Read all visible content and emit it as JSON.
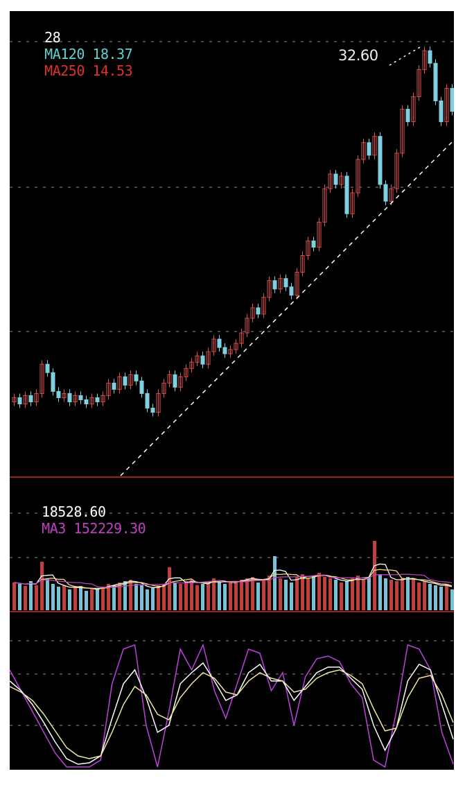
{
  "chart_data": [
    {
      "type": "candlestick",
      "legend": [
        {
          "text": "28",
          "color": "#ffffff"
        },
        {
          "text": "MA120 18.37",
          "color": "#5fd3d3"
        },
        {
          "text": "MA250 14.53",
          "color": "#e03030"
        }
      ],
      "annotation": "32.60",
      "grid": true,
      "ylim": [
        12,
        33.3
      ],
      "close": [
        15.8,
        15.5,
        15.9,
        15.6,
        16.0,
        17.4,
        17.0,
        16.1,
        15.8,
        16.0,
        15.6,
        15.9,
        15.7,
        15.5,
        15.8,
        15.6,
        15.9,
        16.5,
        16.2,
        16.8,
        16.4,
        16.9,
        16.6,
        16.0,
        15.3,
        15.1,
        16.0,
        16.5,
        16.9,
        16.3,
        16.8,
        17.2,
        17.5,
        17.8,
        17.4,
        18.0,
        18.6,
        18.2,
        17.9,
        18.1,
        18.4,
        18.9,
        19.6,
        20.1,
        19.8,
        20.6,
        21.4,
        21.0,
        21.5,
        21.1,
        20.7,
        21.8,
        22.6,
        23.3,
        23.0,
        24.2,
        25.8,
        26.5,
        26.0,
        26.4,
        24.6,
        25.6,
        27.2,
        28.0,
        27.4,
        28.3,
        26.0,
        25.2,
        25.8,
        27.5,
        29.6,
        29.0,
        30.2,
        31.5,
        32.4,
        31.8,
        30.0,
        29.0,
        30.6,
        29.5
      ],
      "colors": {
        "up": "#e05050",
        "down": "#7fd0e0",
        "trendline": "#ffffff"
      }
    },
    {
      "type": "bar",
      "legend": [
        {
          "text": "18528.60",
          "color": "#ffffff"
        },
        {
          "text": "MA3 152229.30",
          "color": "#c040c0"
        }
      ],
      "grid": true,
      "values": [
        40,
        38,
        35,
        42,
        36,
        70,
        45,
        38,
        34,
        36,
        30,
        33,
        35,
        28,
        32,
        30,
        34,
        38,
        36,
        40,
        42,
        44,
        38,
        36,
        30,
        32,
        36,
        38,
        62,
        40,
        38,
        42,
        44,
        36,
        38,
        40,
        46,
        42,
        38,
        40,
        42,
        44,
        46,
        48,
        40,
        44,
        50,
        78,
        46,
        44,
        40,
        48,
        52,
        46,
        50,
        54,
        48,
        46,
        44,
        40,
        42,
        46,
        50,
        44,
        48,
        100,
        52,
        46,
        44,
        42,
        46,
        48,
        44,
        40,
        42,
        38,
        36,
        34,
        38,
        30
      ],
      "colors": {
        "up": "#c04040",
        "down": "#7fc0d8",
        "ma1": "#ffffff",
        "ma2": "#f0e080",
        "ma3": "#c040c0"
      }
    },
    {
      "type": "line",
      "grid": true,
      "ylim": [
        0,
        100
      ],
      "series": [
        {
          "key": "J",
          "color": "#c040e0",
          "values": [
            70,
            55,
            40,
            25,
            10,
            0,
            0,
            0,
            5,
            60,
            85,
            88,
            30,
            0,
            40,
            85,
            70,
            88,
            55,
            35,
            60,
            85,
            82,
            55,
            68,
            30,
            65,
            78,
            80,
            76,
            60,
            50,
            5,
            0,
            40,
            88,
            85,
            70,
            25,
            2
          ]
        },
        {
          "key": "K",
          "color": "#ffffff",
          "values": [
            62,
            55,
            45,
            32,
            18,
            6,
            2,
            3,
            8,
            35,
            60,
            70,
            50,
            25,
            30,
            60,
            68,
            75,
            62,
            48,
            52,
            68,
            74,
            62,
            62,
            48,
            58,
            68,
            72,
            72,
            64,
            56,
            30,
            12,
            28,
            62,
            74,
            70,
            45,
            20
          ]
        },
        {
          "key": "D",
          "color": "#f0e8a0",
          "values": [
            58,
            54,
            48,
            38,
            26,
            14,
            8,
            6,
            8,
            25,
            45,
            58,
            52,
            38,
            34,
            50,
            60,
            68,
            64,
            54,
            52,
            62,
            68,
            64,
            62,
            54,
            56,
            64,
            68,
            70,
            66,
            60,
            42,
            26,
            28,
            50,
            64,
            66,
            52,
            32
          ]
        }
      ]
    }
  ]
}
